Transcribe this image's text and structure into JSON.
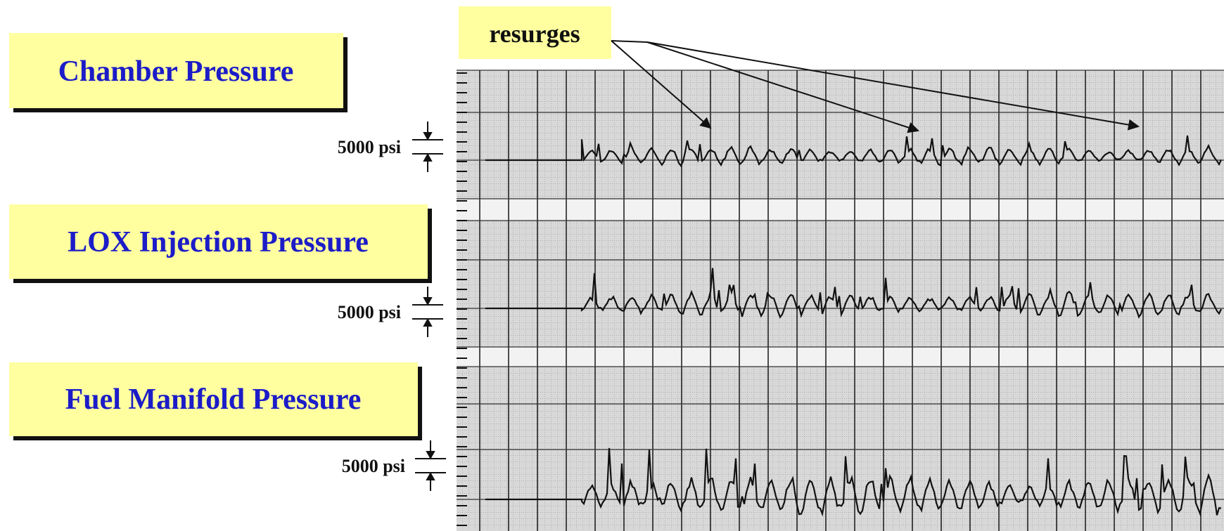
{
  "callout": {
    "label": "resurges"
  },
  "traces": [
    {
      "title": "Chamber Pressure",
      "scale_label": "5000 psi"
    },
    {
      "title": "LOX Injection Pressure",
      "scale_label": "5000 psi"
    },
    {
      "title": "Fuel Manifold Pressure",
      "scale_label": "5000 psi"
    }
  ]
}
